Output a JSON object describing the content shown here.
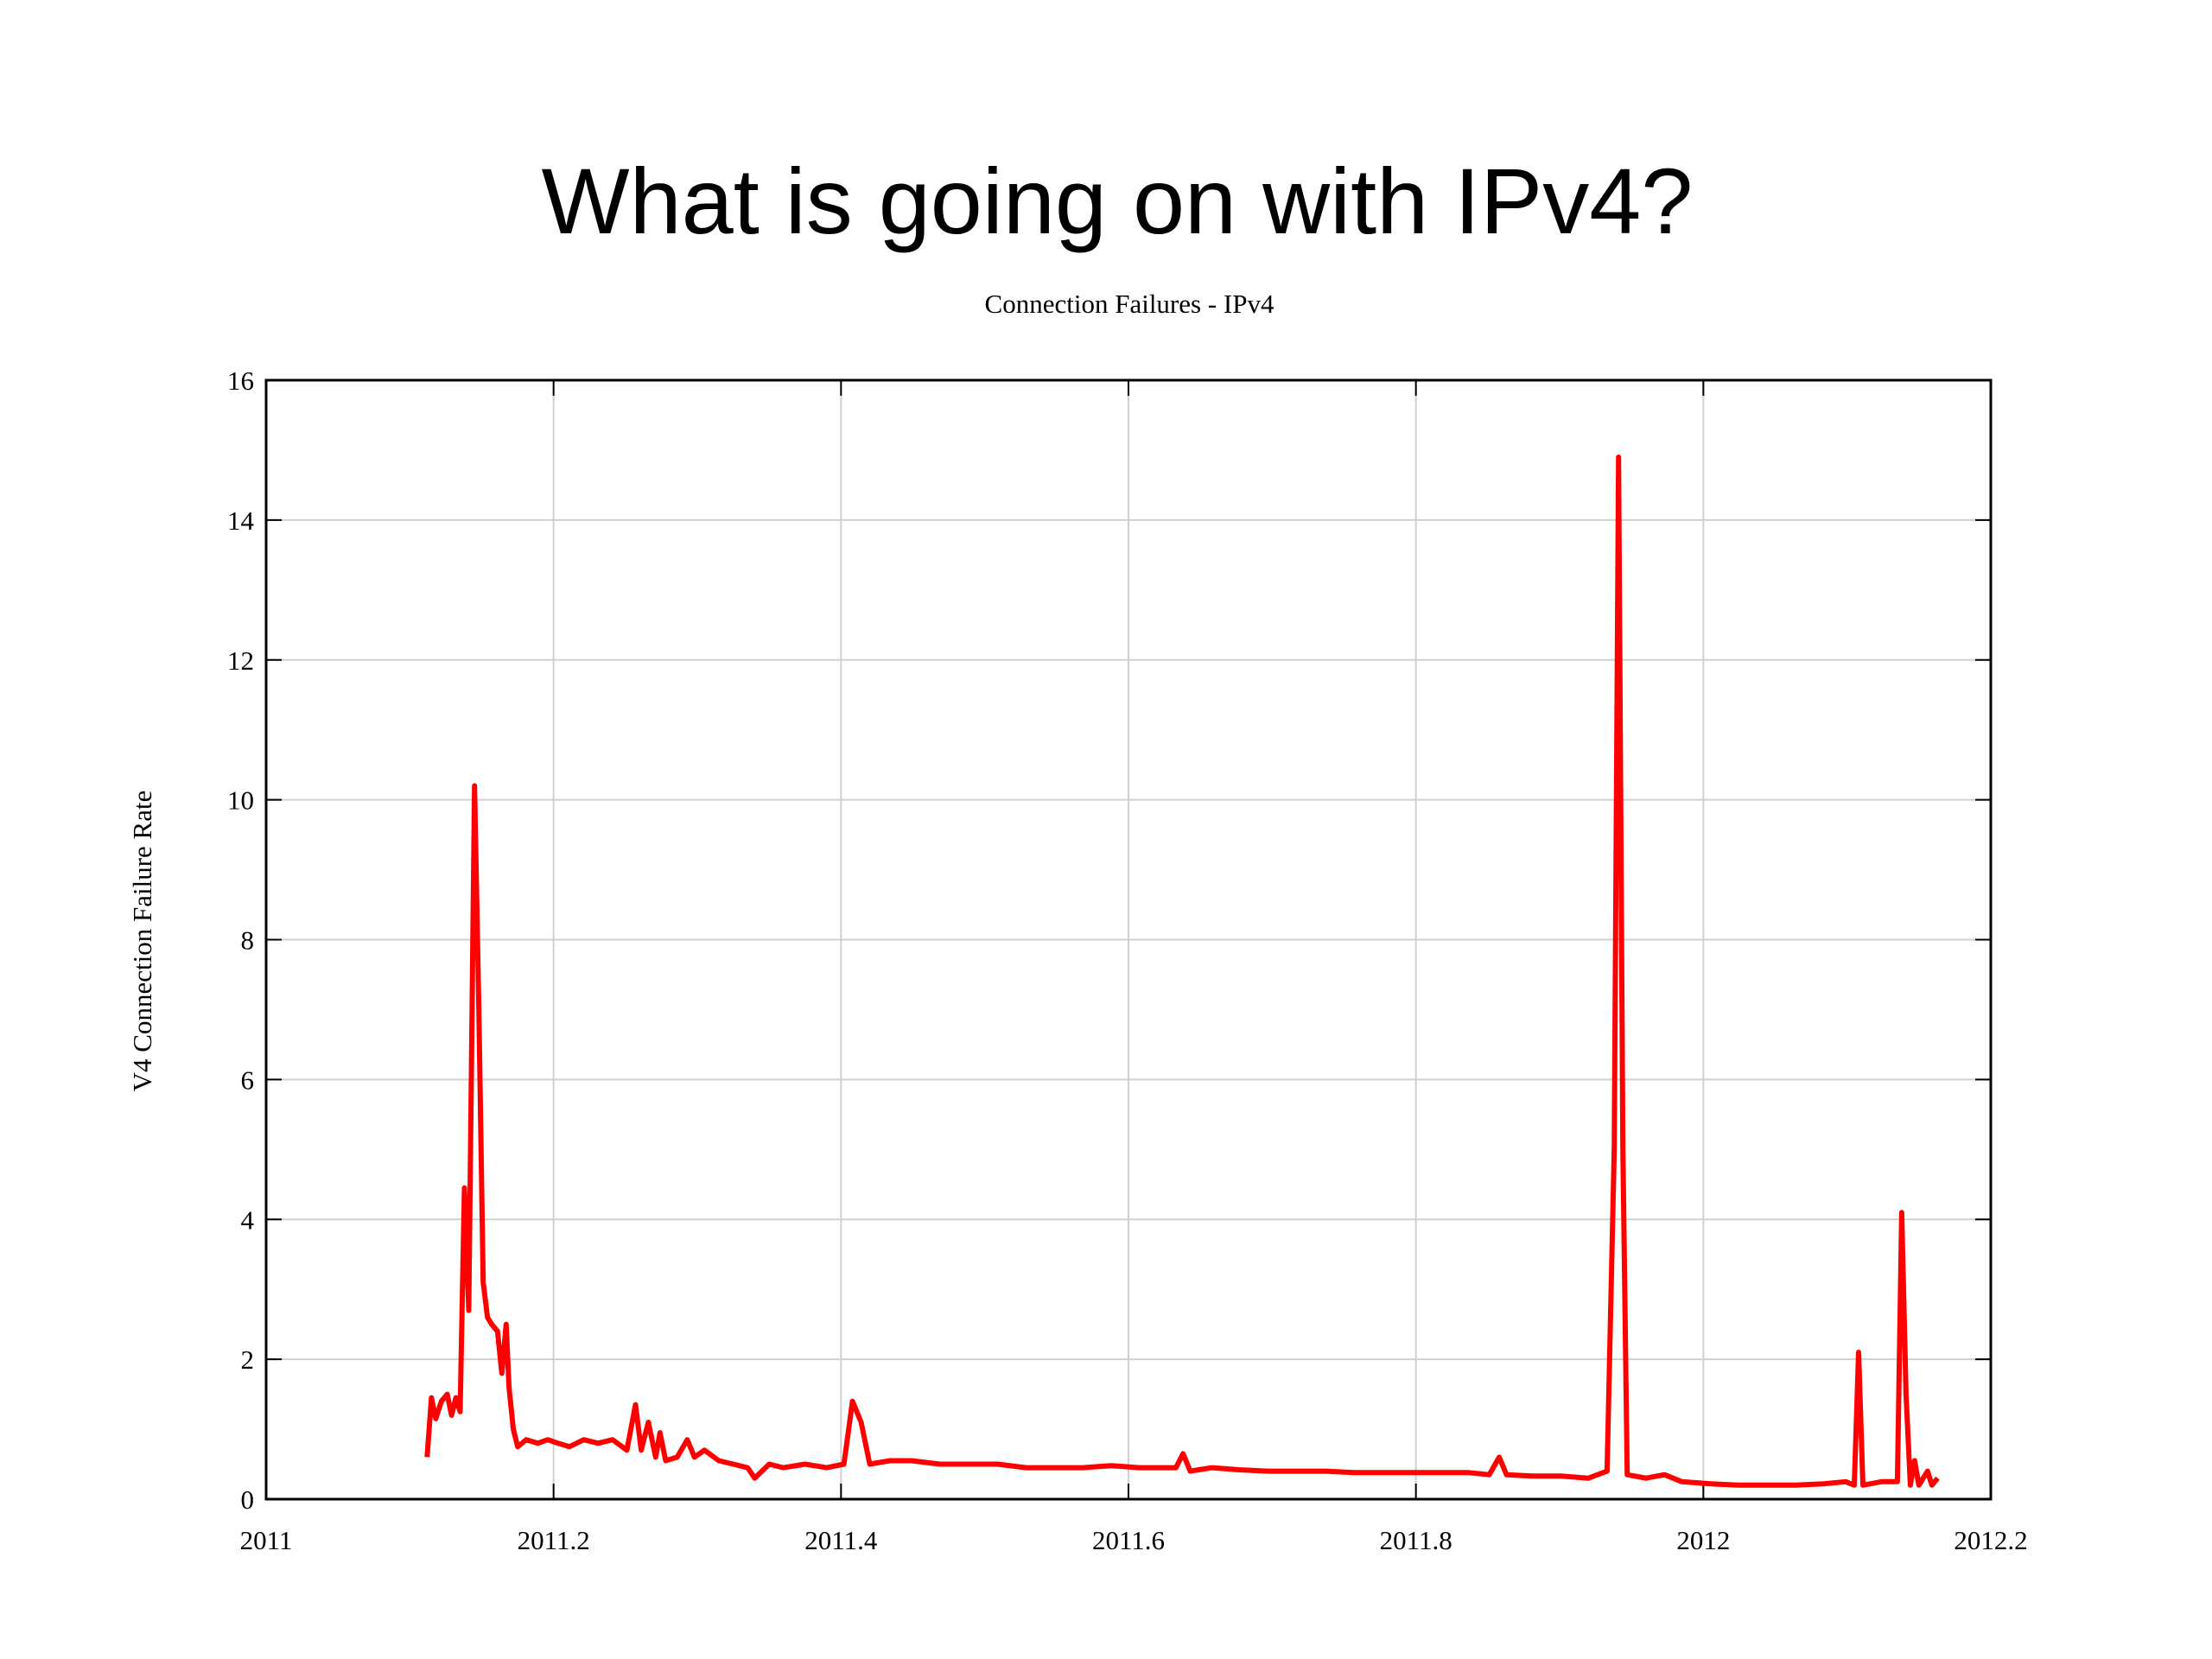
{
  "chart_data": {
    "type": "line",
    "title": "What is going on with IPv4?",
    "subtitle": "Connection Failures - IPv4",
    "y_label": "V4 Connection Failure Rate",
    "x": [
      2011.112,
      2011.115,
      2011.118,
      2011.122,
      2011.126,
      2011.129,
      2011.132,
      2011.135,
      2011.138,
      2011.141,
      2011.145,
      2011.148,
      2011.151,
      2011.154,
      2011.157,
      2011.161,
      2011.164,
      2011.167,
      2011.169,
      2011.172,
      2011.175,
      2011.181,
      2011.189,
      2011.196,
      2011.203,
      2011.211,
      2011.221,
      2011.231,
      2011.241,
      2011.251,
      2011.257,
      2011.261,
      2011.266,
      2011.271,
      2011.274,
      2011.278,
      2011.286,
      2011.293,
      2011.298,
      2011.305,
      2011.315,
      2011.325,
      2011.335,
      2011.34,
      2011.35,
      2011.36,
      2011.375,
      2011.39,
      2011.402,
      2011.408,
      2011.414,
      2011.42,
      2011.434,
      2011.449,
      2011.469,
      2011.489,
      2011.509,
      2011.529,
      2011.548,
      2011.568,
      2011.588,
      2011.608,
      2011.623,
      2011.633,
      2011.638,
      2011.643,
      2011.658,
      2011.677,
      2011.697,
      2011.717,
      2011.737,
      2011.757,
      2011.777,
      2011.796,
      2011.816,
      2011.836,
      2011.851,
      2011.858,
      2011.863,
      2011.881,
      2011.901,
      2011.92,
      2011.933,
      2011.938,
      2011.941,
      2011.944,
      2011.947,
      2011.96,
      2011.973,
      2011.985,
      2012.005,
      2012.024,
      2012.044,
      2012.064,
      2012.084,
      2012.099,
      2012.105,
      2012.108,
      2012.111,
      2012.124,
      2012.135,
      2012.138,
      2012.141,
      2012.144,
      2012.147,
      2012.15,
      2012.156,
      2012.159,
      2012.163
    ],
    "series": [
      {
        "name": "IPv4",
        "color": "#ff0000",
        "values": [
          0.6,
          1.45,
          1.15,
          1.4,
          1.5,
          1.2,
          1.45,
          1.25,
          4.45,
          2.7,
          10.2,
          7,
          3.1,
          2.6,
          2.5,
          2.4,
          1.8,
          2.5,
          1.6,
          1.0,
          0.75,
          0.85,
          0.8,
          0.85,
          0.8,
          0.75,
          0.85,
          0.8,
          0.85,
          0.7,
          1.35,
          0.7,
          1.1,
          0.6,
          0.95,
          0.55,
          0.6,
          0.85,
          0.6,
          0.7,
          0.55,
          0.5,
          0.45,
          0.3,
          0.5,
          0.45,
          0.5,
          0.45,
          0.5,
          1.4,
          1.1,
          0.5,
          0.55,
          0.55,
          0.5,
          0.5,
          0.5,
          0.45,
          0.45,
          0.45,
          0.48,
          0.45,
          0.45,
          0.45,
          0.65,
          0.4,
          0.45,
          0.42,
          0.4,
          0.4,
          0.4,
          0.38,
          0.38,
          0.38,
          0.38,
          0.38,
          0.35,
          0.6,
          0.35,
          0.33,
          0.33,
          0.3,
          0.4,
          5,
          14.9,
          5,
          0.35,
          0.3,
          0.35,
          0.25,
          0.22,
          0.2,
          0.2,
          0.2,
          0.22,
          0.25,
          0.2,
          2.1,
          0.2,
          0.25,
          0.25,
          4.1,
          1.5,
          0.2,
          0.55,
          0.2,
          0.4,
          0.2,
          0.3
        ]
      }
    ],
    "xlim": [
      2011,
      2012.2
    ],
    "xticks": [
      2011,
      2011.2,
      2011.4,
      2011.6,
      2011.8,
      2012,
      2012.2
    ],
    "ylim": [
      0,
      16
    ],
    "yticks": [
      0,
      2,
      4,
      6,
      8,
      10,
      12,
      14,
      16
    ],
    "grid": true
  }
}
